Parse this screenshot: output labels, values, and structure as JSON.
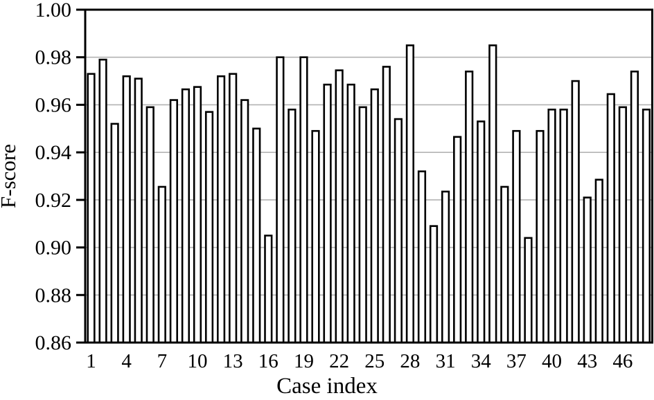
{
  "chart_data": {
    "type": "bar",
    "title": "",
    "xlabel": "Case index",
    "ylabel": "F-score",
    "ylim": [
      0.86,
      1.0
    ],
    "grid": true,
    "legend": "none",
    "colors": {
      "bar_fill": "#ffffff",
      "bar_stroke": "#000000",
      "grid_color": "#b3b3b3",
      "axis_color": "#000000",
      "text_color": "#000000"
    },
    "yticks": [
      {
        "value": 1.0,
        "label": "1.00"
      },
      {
        "value": 0.98,
        "label": "0.98"
      },
      {
        "value": 0.96,
        "label": "0.96"
      },
      {
        "value": 0.94,
        "label": "0.94"
      },
      {
        "value": 0.92,
        "label": "0.92"
      },
      {
        "value": 0.9,
        "label": "0.90"
      },
      {
        "value": 0.88,
        "label": "0.88"
      },
      {
        "value": 0.86,
        "label": "0.86"
      }
    ],
    "xticks": [
      {
        "pos": 1,
        "label": "1"
      },
      {
        "pos": 4,
        "label": "4"
      },
      {
        "pos": 7,
        "label": "7"
      },
      {
        "pos": 10,
        "label": "10"
      },
      {
        "pos": 13,
        "label": "13"
      },
      {
        "pos": 16,
        "label": "16"
      },
      {
        "pos": 19,
        "label": "19"
      },
      {
        "pos": 22,
        "label": "22"
      },
      {
        "pos": 25,
        "label": "25"
      },
      {
        "pos": 28,
        "label": "28"
      },
      {
        "pos": 31,
        "label": "31"
      },
      {
        "pos": 34,
        "label": "34"
      },
      {
        "pos": 37,
        "label": "37"
      },
      {
        "pos": 40,
        "label": "40"
      },
      {
        "pos": 43,
        "label": "43"
      },
      {
        "pos": 46,
        "label": "46"
      }
    ],
    "categories": [
      1,
      2,
      3,
      4,
      5,
      6,
      7,
      8,
      9,
      10,
      11,
      12,
      13,
      14,
      15,
      16,
      17,
      18,
      19,
      20,
      21,
      22,
      23,
      24,
      25,
      26,
      27,
      28,
      29,
      30,
      31,
      32,
      33,
      34,
      35,
      36,
      37,
      38,
      39,
      40,
      41,
      42,
      43,
      44,
      45,
      46,
      47,
      48
    ],
    "values": [
      0.973,
      0.979,
      0.952,
      0.972,
      0.971,
      0.959,
      0.9255,
      0.962,
      0.9665,
      0.9675,
      0.957,
      0.972,
      0.973,
      0.962,
      0.95,
      0.905,
      0.98,
      0.958,
      0.98,
      0.949,
      0.9685,
      0.9745,
      0.9685,
      0.959,
      0.9665,
      0.976,
      0.954,
      0.985,
      0.932,
      0.909,
      0.9235,
      0.9465,
      0.974,
      0.953,
      0.985,
      0.9255,
      0.949,
      0.904,
      0.949,
      0.958,
      0.958,
      0.97,
      0.921,
      0.9285,
      0.9645,
      0.959,
      0.974,
      0.958
    ]
  }
}
